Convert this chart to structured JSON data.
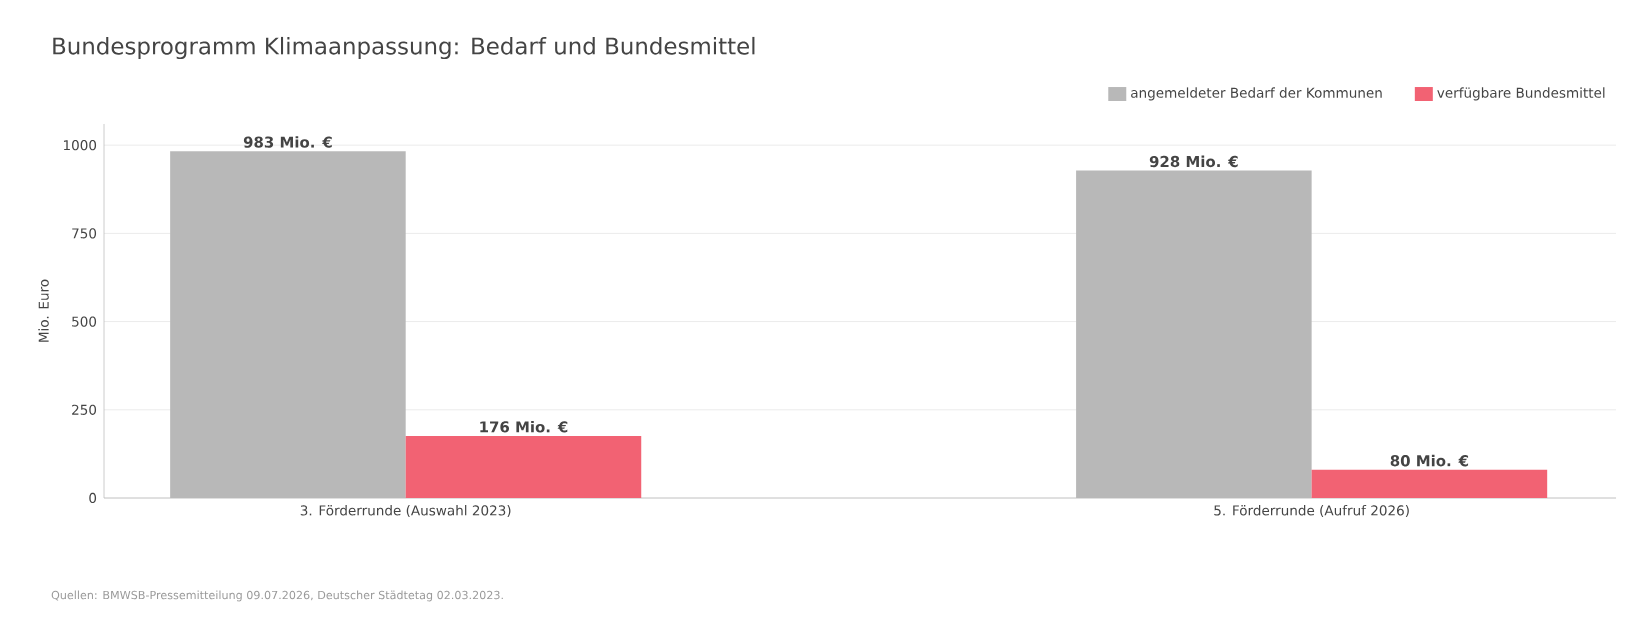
{
  "chart_data": {
    "type": "bar",
    "title": "Bundesprogramm Klimaanpassung: Bedarf und Bundesmittel",
    "ylabel": "Mio. Euro",
    "categories": [
      "3. Förderrunde (Auswahl 2023)",
      "5. Förderrunde (Aufruf 2026)"
    ],
    "series": [
      {
        "name": "angemeldeter Bedarf der Kommunen",
        "color": "#b8b8b8",
        "values": [
          983,
          928
        ],
        "value_labels": [
          "983 Mio. €",
          "928 Mio. €"
        ]
      },
      {
        "name": "verfügbare Bundesmittel",
        "color": "#f26273",
        "values": [
          176,
          80
        ],
        "value_labels": [
          "176 Mio. €",
          "80 Mio. €"
        ]
      }
    ],
    "ylim": [
      0,
      1060
    ],
    "yticks": [
      0,
      250,
      500,
      750,
      1000
    ],
    "grid": "y",
    "legend": "top right",
    "annotations": [
      "Quellen: BMWSB-Pressemitteilung 09.07.2026, Deutscher Städtetag 02.03.2023."
    ]
  }
}
